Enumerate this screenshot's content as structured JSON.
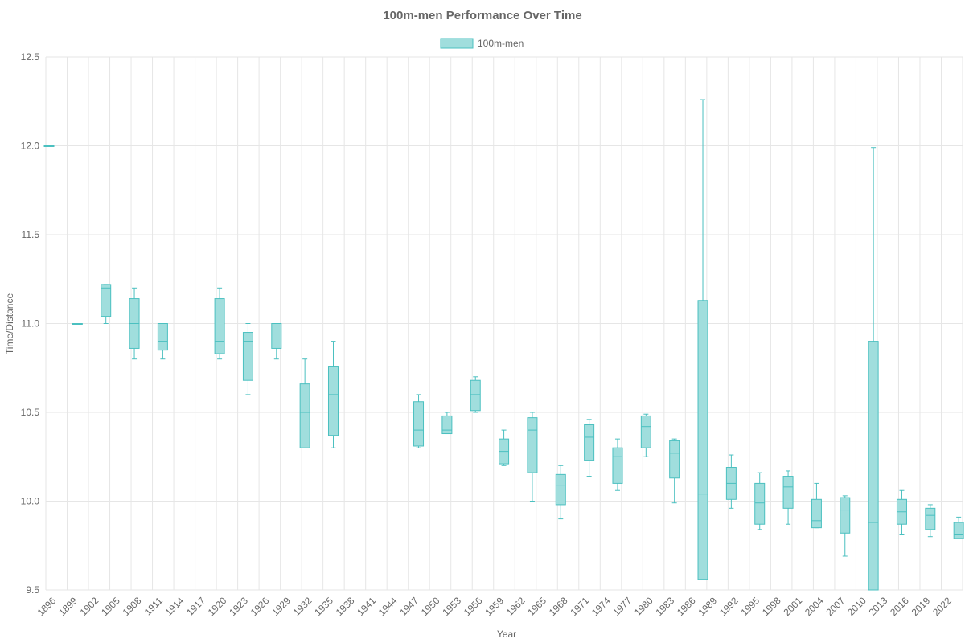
{
  "colors": {
    "box_fill": "#a0dedd",
    "box_stroke": "#4bc0c0",
    "grid": "#e6e6e6",
    "text": "#666666"
  },
  "chart_data": {
    "type": "boxplot",
    "title": "100m-men Performance Over Time",
    "xlabel": "Year",
    "ylabel": "Time/Distance",
    "ylim": [
      9.5,
      12.5
    ],
    "yticks": [
      "9.5",
      "10.0",
      "10.5",
      "11.0",
      "11.5",
      "12.0",
      "12.5"
    ],
    "grid": true,
    "legend_position": "top",
    "categories": [
      "1896",
      "1899",
      "1902",
      "1905",
      "1908",
      "1911",
      "1914",
      "1917",
      "1920",
      "1923",
      "1926",
      "1929",
      "1932",
      "1935",
      "1938",
      "1941",
      "1944",
      "1947",
      "1950",
      "1953",
      "1956",
      "1959",
      "1962",
      "1965",
      "1968",
      "1971",
      "1974",
      "1977",
      "1980",
      "1983",
      "1986",
      "1989",
      "1992",
      "1995",
      "1998",
      "2001",
      "2004",
      "2007",
      "2010",
      "2013",
      "2016",
      "2019",
      "2022"
    ],
    "series": [
      {
        "name": "100m-men",
        "boxes": [
          {
            "year": "1896",
            "min": 12.0,
            "q1": 12.0,
            "median": 12.0,
            "q3": 12.0,
            "max": 12.0
          },
          {
            "year": "1900",
            "min": 11.0,
            "q1": 11.0,
            "median": 11.0,
            "q3": 11.0,
            "max": 11.0
          },
          {
            "year": "1904",
            "min": 11.0,
            "q1": 11.04,
            "median": 11.2,
            "q3": 11.22,
            "max": 11.22
          },
          {
            "year": "1908",
            "min": 10.8,
            "q1": 10.86,
            "median": 11.0,
            "q3": 11.14,
            "max": 11.2
          },
          {
            "year": "1912",
            "min": 10.8,
            "q1": 10.85,
            "median": 10.9,
            "q3": 11.0,
            "max": 11.0
          },
          {
            "year": "1920",
            "min": 10.8,
            "q1": 10.83,
            "median": 10.9,
            "q3": 11.14,
            "max": 11.2
          },
          {
            "year": "1924",
            "min": 10.6,
            "q1": 10.68,
            "median": 10.9,
            "q3": 10.95,
            "max": 11.0
          },
          {
            "year": "1928",
            "min": 10.8,
            "q1": 10.86,
            "median": 11.0,
            "q3": 11.0,
            "max": 11.0
          },
          {
            "year": "1932",
            "min": 10.3,
            "q1": 10.3,
            "median": 10.5,
            "q3": 10.66,
            "max": 10.8
          },
          {
            "year": "1936",
            "min": 10.3,
            "q1": 10.37,
            "median": 10.6,
            "q3": 10.76,
            "max": 10.9
          },
          {
            "year": "1948",
            "min": 10.3,
            "q1": 10.31,
            "median": 10.4,
            "q3": 10.56,
            "max": 10.6
          },
          {
            "year": "1952",
            "min": 10.38,
            "q1": 10.38,
            "median": 10.4,
            "q3": 10.48,
            "max": 10.5
          },
          {
            "year": "1956",
            "min": 10.5,
            "q1": 10.51,
            "median": 10.6,
            "q3": 10.68,
            "max": 10.7
          },
          {
            "year": "1960",
            "min": 10.2,
            "q1": 10.21,
            "median": 10.28,
            "q3": 10.35,
            "max": 10.4
          },
          {
            "year": "1964",
            "min": 10.0,
            "q1": 10.16,
            "median": 10.4,
            "q3": 10.47,
            "max": 10.5
          },
          {
            "year": "1968",
            "min": 9.9,
            "q1": 9.98,
            "median": 10.09,
            "q3": 10.15,
            "max": 10.2
          },
          {
            "year": "1972",
            "min": 10.14,
            "q1": 10.23,
            "median": 10.36,
            "q3": 10.43,
            "max": 10.46
          },
          {
            "year": "1976",
            "min": 10.06,
            "q1": 10.1,
            "median": 10.25,
            "q3": 10.3,
            "max": 10.35
          },
          {
            "year": "1980",
            "min": 10.25,
            "q1": 10.3,
            "median": 10.42,
            "q3": 10.48,
            "max": 10.49
          },
          {
            "year": "1984",
            "min": 9.99,
            "q1": 10.13,
            "median": 10.27,
            "q3": 10.34,
            "max": 10.35
          },
          {
            "year": "1988",
            "min": 9.56,
            "q1": 9.56,
            "median": 10.04,
            "q3": 11.13,
            "max": 12.26
          },
          {
            "year": "1992",
            "min": 9.96,
            "q1": 10.01,
            "median": 10.1,
            "q3": 10.19,
            "max": 10.26
          },
          {
            "year": "1996",
            "min": 9.84,
            "q1": 9.87,
            "median": 9.99,
            "q3": 10.1,
            "max": 10.16
          },
          {
            "year": "2000",
            "min": 9.87,
            "q1": 9.96,
            "median": 10.08,
            "q3": 10.14,
            "max": 10.17
          },
          {
            "year": "2004",
            "min": 9.85,
            "q1": 9.85,
            "median": 9.89,
            "q3": 10.01,
            "max": 10.1
          },
          {
            "year": "2008",
            "min": 9.69,
            "q1": 9.82,
            "median": 9.95,
            "q3": 10.02,
            "max": 10.03
          },
          {
            "year": "2012",
            "min": 9.5,
            "q1": 9.5,
            "median": 9.88,
            "q3": 10.9,
            "max": 11.99
          },
          {
            "year": "2016",
            "min": 9.81,
            "q1": 9.87,
            "median": 9.94,
            "q3": 10.01,
            "max": 10.06
          },
          {
            "year": "2020",
            "min": 9.8,
            "q1": 9.84,
            "median": 9.92,
            "q3": 9.96,
            "max": 9.98
          },
          {
            "year": "2024",
            "min": 9.79,
            "q1": 9.79,
            "median": 9.81,
            "q3": 9.88,
            "max": 9.91
          }
        ]
      }
    ]
  }
}
